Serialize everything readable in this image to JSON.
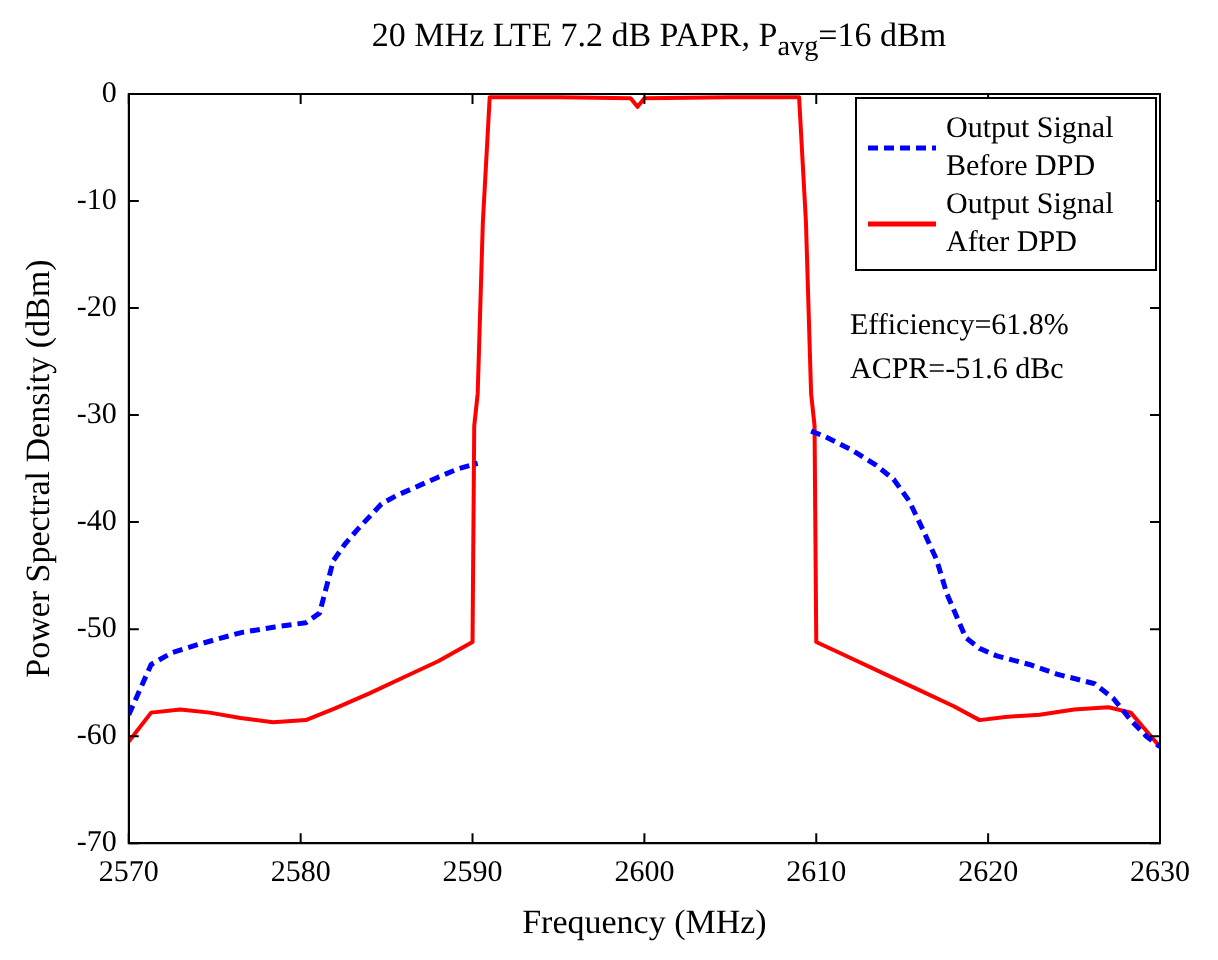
{
  "chart_data": {
    "type": "line",
    "title": "20 MHz LTE 7.2 dB PAPR, P$_{avg}$=16 dBm",
    "xlabel": "Frequency (MHz)",
    "ylabel": "Power Spectral Density (dBm)",
    "xlim": [
      2570,
      2630
    ],
    "xticks": [
      2570,
      2580,
      2590,
      2600,
      2610,
      2620,
      2630
    ],
    "ylim": [
      -70,
      0
    ],
    "yticks": [
      -70,
      -60,
      -50,
      -40,
      -30,
      -20,
      -10,
      0
    ],
    "grid": false,
    "legend": "top right",
    "marker": "none",
    "annotations": [
      "Efficiency=61.8%",
      "ACPR=-51.6 dBc"
    ],
    "series": [
      {
        "name": "Output Signal Before DPD",
        "color": "#0000ff",
        "line_style": "dashed",
        "x": [
          2570,
          2571.3,
          2572.5,
          2573.9,
          2575.2,
          2576.6,
          2578.5,
          2580.3,
          2581.1,
          2581.9,
          2582.6,
          2583.3,
          2584.7,
          2585.6,
          2586.6,
          2588,
          2589.2,
          2590.3,
          2600,
          2609.7,
          2610.5,
          2612,
          2613.5,
          2614.5,
          2615.4,
          2616.2,
          2617,
          2617.6,
          2618.7,
          2619.5,
          2620.5,
          2622.4,
          2624,
          2626.2,
          2627.3,
          2628.3,
          2629.2,
          2630
        ],
        "values": [
          -58,
          -53.3,
          -52.2,
          -51.5,
          -50.9,
          -50.3,
          -49.8,
          -49.4,
          -48.5,
          -43.6,
          -42,
          -40.7,
          -38.3,
          -37.5,
          -36.8,
          -35.8,
          -35,
          -34.5,
          null,
          -31.5,
          -32,
          -33.2,
          -34.7,
          -36,
          -38,
          -40.7,
          -43.5,
          -46.7,
          -50.8,
          -51.8,
          -52.5,
          -53.3,
          -54.2,
          -55.1,
          -56.5,
          -58.5,
          -60,
          -61
        ]
      },
      {
        "name": "Output Signal After DPD",
        "color": "#ff0000",
        "line_style": "solid",
        "x": [
          2570,
          2571.3,
          2573,
          2574.7,
          2576.5,
          2578.4,
          2580.3,
          2582,
          2584,
          2586,
          2588,
          2590,
          2590.1,
          2590.3,
          2590.6,
          2591,
          2595,
          2599.2,
          2599.6,
          2600,
          2605,
          2609,
          2609.4,
          2609.7,
          2609.9,
          2610,
          2612,
          2614,
          2616,
          2618,
          2619.5,
          2621,
          2623,
          2625,
          2627,
          2628.3,
          2629.2,
          2630
        ],
        "values": [
          -60.5,
          -57.8,
          -57.5,
          -57.8,
          -58.3,
          -58.7,
          -58.5,
          -57.4,
          -56,
          -54.5,
          -53,
          -51.2,
          -31,
          -28,
          -12,
          -0.3,
          -0.3,
          -0.4,
          -1.2,
          -0.4,
          -0.3,
          -0.3,
          -12,
          -28,
          -31,
          -51.2,
          -52.7,
          -54.2,
          -55.7,
          -57.2,
          -58.5,
          -58.2,
          -58,
          -57.5,
          -57.3,
          -57.8,
          -59.5,
          -61
        ]
      }
    ]
  }
}
